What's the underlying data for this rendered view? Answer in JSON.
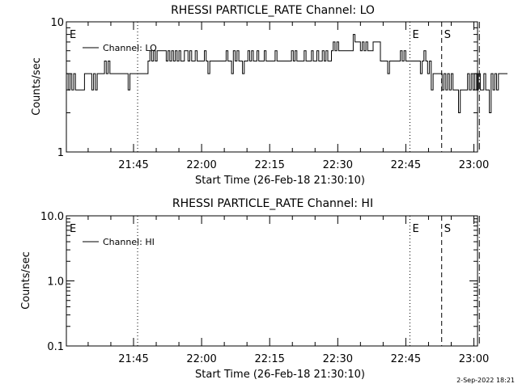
{
  "footer_date": "2-Sep-2022 18:21",
  "chart_data": [
    {
      "type": "line",
      "title": "RHESSI PARTICLE_RATE Channel: LO",
      "xlabel": "Start Time (26-Feb-18 21:30:10)",
      "ylabel": "Counts/sec",
      "yscale": "log",
      "ylim": [
        1,
        10
      ],
      "yticks": [
        1,
        10
      ],
      "ytick_labels": [
        "1",
        "10"
      ],
      "xlim_min": [
        0.2,
        90.8
      ],
      "xticks_min": [
        15,
        30,
        45,
        60,
        75,
        90
      ],
      "xtick_labels": [
        "21:45",
        "22:00",
        "22:15",
        "22:30",
        "22:45",
        "23:00"
      ],
      "legend": "top-left",
      "series": [
        {
          "name": "Channel: LO",
          "x_start_min": 0.2,
          "x_step_min": 0.4,
          "values": [
            4,
            3,
            4,
            3,
            4,
            3,
            3,
            3,
            3,
            3,
            4,
            4,
            4,
            4,
            3,
            4,
            3,
            4,
            4,
            4,
            4,
            5,
            4,
            5,
            4,
            4,
            4,
            4,
            4,
            4,
            4,
            4,
            4,
            4,
            3,
            4,
            4,
            4,
            4,
            4,
            4,
            4,
            4,
            4,
            4,
            5,
            6,
            5,
            6,
            5,
            6,
            6,
            6,
            6,
            6,
            5,
            6,
            5,
            6,
            5,
            6,
            5,
            6,
            5,
            5,
            6,
            6,
            5,
            6,
            5,
            5,
            6,
            5,
            5,
            5,
            5,
            6,
            5,
            4,
            5,
            5,
            5,
            5,
            5,
            5,
            5,
            5,
            5,
            6,
            5,
            5,
            4,
            6,
            5,
            6,
            5,
            5,
            4,
            5,
            5,
            6,
            5,
            6,
            5,
            5,
            6,
            5,
            5,
            5,
            6,
            5,
            5,
            5,
            5,
            5,
            6,
            5,
            5,
            5,
            5,
            5,
            5,
            5,
            5,
            6,
            5,
            6,
            5,
            5,
            5,
            5,
            6,
            5,
            5,
            5,
            6,
            5,
            5,
            6,
            5,
            5,
            6,
            5,
            6,
            5,
            5,
            6,
            7,
            6,
            7,
            6,
            6,
            6,
            6,
            6,
            6,
            6,
            6,
            8,
            7,
            7,
            7,
            6,
            7,
            6,
            7,
            6,
            6,
            6,
            7,
            7,
            7,
            7,
            5,
            5,
            5,
            5,
            4,
            5,
            5,
            5,
            5,
            5,
            5,
            6,
            5,
            6,
            5,
            5,
            5,
            5,
            5,
            5,
            5,
            5,
            4,
            5,
            6,
            5,
            4,
            5,
            3,
            4,
            4,
            4,
            4,
            4,
            3,
            4,
            3,
            4,
            3,
            4,
            3,
            3,
            3,
            2,
            3,
            3,
            3,
            3,
            4,
            3,
            4,
            3,
            4,
            3,
            4,
            3,
            3,
            4,
            3,
            3,
            2,
            4,
            3,
            4,
            3,
            4,
            4,
            4,
            4,
            4
          ]
        }
      ],
      "event_markers": [
        {
          "label": "E",
          "time_min": 0.2,
          "line": "none"
        },
        {
          "label": "",
          "time_min": 15.9,
          "line": "dotted"
        },
        {
          "label": "E",
          "time_min": 75.9,
          "line": "dotted"
        },
        {
          "label": "S",
          "time_min": 82.9,
          "line": "dashed"
        },
        {
          "label": "",
          "time_min": 91.2,
          "line": "dashdot"
        }
      ]
    },
    {
      "type": "line",
      "title": "RHESSI PARTICLE_RATE Channel: HI",
      "xlabel": "Start Time (26-Feb-18 21:30:10)",
      "ylabel": "Counts/sec",
      "yscale": "log",
      "ylim": [
        0.1,
        10
      ],
      "yticks": [
        0.1,
        1,
        10
      ],
      "ytick_labels": [
        "0.1",
        "1.0",
        "10.0"
      ],
      "xlim_min": [
        0.2,
        90.8
      ],
      "xticks_min": [
        15,
        30,
        45,
        60,
        75,
        90
      ],
      "xtick_labels": [
        "21:45",
        "22:00",
        "22:15",
        "22:30",
        "22:45",
        "23:00"
      ],
      "legend": "top-left",
      "series": [
        {
          "name": "Channel: HI",
          "values": []
        }
      ],
      "event_markers": [
        {
          "label": "E",
          "time_min": 0.2,
          "line": "none"
        },
        {
          "label": "",
          "time_min": 15.9,
          "line": "dotted"
        },
        {
          "label": "E",
          "time_min": 75.9,
          "line": "dotted"
        },
        {
          "label": "S",
          "time_min": 82.9,
          "line": "dashed"
        },
        {
          "label": "",
          "time_min": 91.2,
          "line": "dashdot"
        }
      ]
    }
  ]
}
